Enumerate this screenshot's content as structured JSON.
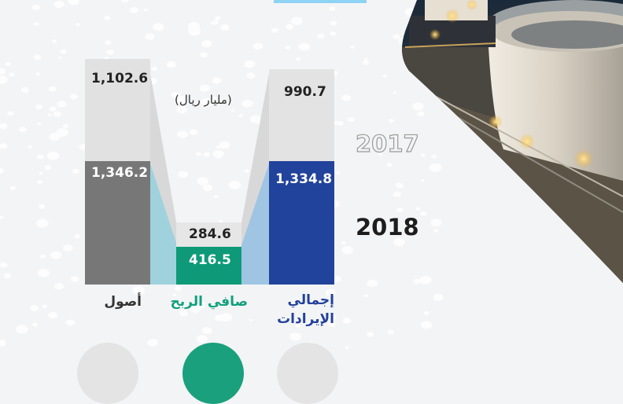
{
  "unit_label": "(مليار ريال)",
  "years": {
    "previous": "2017",
    "current": "2018"
  },
  "colors": {
    "assets_2017": "#e1e1e1",
    "assets_2018": "#777777",
    "profit_2017": "#e6e6e6",
    "profit_2018": "#0e9a78",
    "revenue_2017": "#e3e3e3",
    "revenue_2018": "#22439b",
    "profit_text": "#11a07d",
    "revenue_text": "#23419a"
  },
  "chart_data": {
    "type": "bar",
    "categories": [
      "أصول",
      "صافي الربح",
      "إجمالي الإيرادات"
    ],
    "series": [
      {
        "name": "2017",
        "values": [
          1102.6,
          284.6,
          990.7
        ]
      },
      {
        "name": "2018",
        "values": [
          1346.2,
          416.5,
          1334.8
        ]
      }
    ],
    "value_labels": {
      "2017": [
        "1,102.6",
        "284.6",
        "990.7"
      ],
      "2018": [
        "1,346.2",
        "416.5",
        "1,334.8"
      ]
    },
    "title": "",
    "ylabel": "(مليار ريال)",
    "legend": "right"
  }
}
